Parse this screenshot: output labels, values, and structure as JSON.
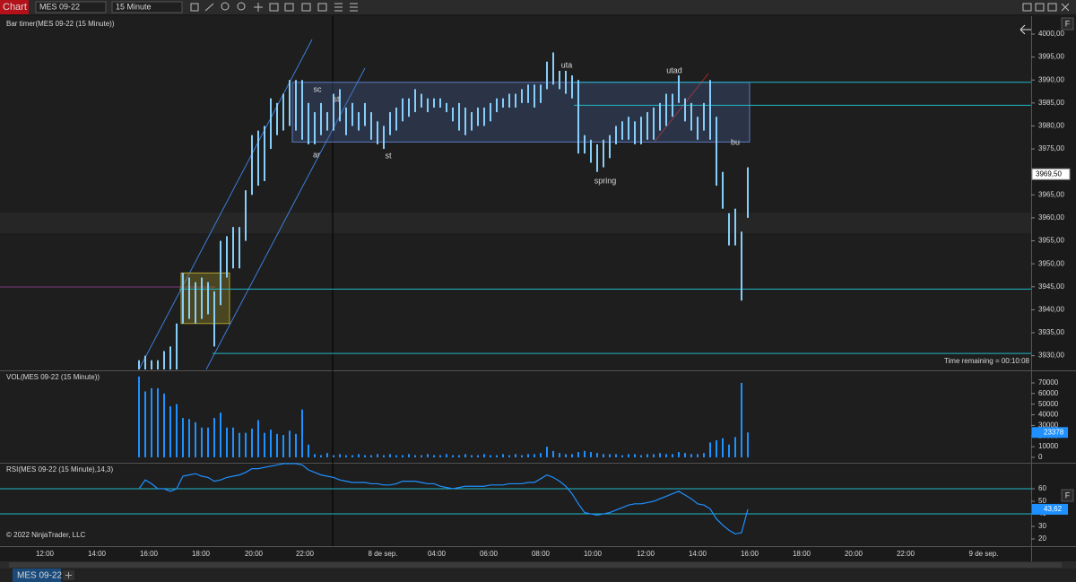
{
  "toolbar": {
    "app": "Chart",
    "instrument": "MES 09-22",
    "interval": "15 Minute"
  },
  "chart_data": [
    {
      "type": "hilo",
      "title": "Bar timer(MES 09-22 (15 Minute))",
      "color": "#87cefa",
      "high": [
        3929,
        3930,
        3929,
        3929,
        3931,
        3932,
        3937,
        3948,
        3947,
        3946,
        3947,
        3946,
        3944,
        3955,
        3956,
        3958,
        3958,
        3966,
        3978,
        3979,
        3980,
        3986,
        3985,
        3987,
        3990,
        3990,
        3990,
        3985,
        3983,
        3985,
        3983,
        3987,
        3988,
        3984,
        3985,
        3983,
        3985,
        3983,
        3981,
        3980,
        3983,
        3984,
        3986,
        3986,
        3988,
        3987,
        3986,
        3986,
        3986,
        3985,
        3984,
        3985,
        3984,
        3983,
        3984,
        3984,
        3985,
        3986,
        3986,
        3987,
        3987,
        3988,
        3989,
        3989,
        3989,
        3994,
        3996,
        3992,
        3992,
        3991,
        3990,
        3978,
        3977,
        3976,
        3977,
        3978,
        3980,
        3981,
        3982,
        3981,
        3982,
        3983,
        3984,
        3985,
        3987,
        3987,
        3991,
        3986,
        3985,
        3982,
        3985,
        3990,
        3982,
        3970,
        3961,
        3962,
        3957,
        3971
      ],
      "low": [
        3927,
        3927,
        3927,
        3927,
        3927,
        3927,
        3927,
        3937,
        3938,
        3937,
        3938,
        3939,
        3932,
        3941,
        3947,
        3949,
        3949,
        3955,
        3965,
        3967,
        3968,
        3975,
        3978,
        3979,
        3980,
        3979,
        3977,
        3976,
        3976,
        3978,
        3979,
        3979,
        3981,
        3978,
        3980,
        3979,
        3980,
        3977,
        3976,
        3975,
        3978,
        3979,
        3981,
        3982,
        3983,
        3984,
        3983,
        3984,
        3984,
        3983,
        3981,
        3979,
        3978,
        3979,
        3980,
        3980,
        3981,
        3983,
        3984,
        3984,
        3984,
        3985,
        3985,
        3984,
        3985,
        3988,
        3989,
        3988,
        3987,
        3986,
        3974,
        3974,
        3972,
        3970,
        3971,
        3973,
        3976,
        3977,
        3977,
        3976,
        3976,
        3977,
        3977,
        3979,
        3980,
        3982,
        3985,
        3981,
        3979,
        3977,
        3979,
        3977,
        3967,
        3962,
        3954,
        3954,
        3942,
        3960
      ],
      "ylim": [
        3927,
        4003.9
      ],
      "yticks": [
        {
          "value": 4000,
          "label": "4000,00"
        },
        {
          "value": 3995,
          "label": "3995,00"
        },
        {
          "value": 3990,
          "label": "3990,00"
        },
        {
          "value": 3985,
          "label": "3985,00"
        },
        {
          "value": 3980,
          "label": "3980,00"
        },
        {
          "value": 3975,
          "label": "3975,00"
        },
        {
          "value": 3970,
          "label": "3970,00"
        },
        {
          "value": 3965,
          "label": "3965,00"
        },
        {
          "value": 3960,
          "label": "3960,00"
        },
        {
          "value": 3955,
          "label": "3955,00"
        },
        {
          "value": 3950,
          "label": "3950,00"
        },
        {
          "value": 3945,
          "label": "3945,00"
        },
        {
          "value": 3940,
          "label": "3940,00"
        },
        {
          "value": 3935,
          "label": "3935,00"
        },
        {
          "value": 3930,
          "label": "3930,00"
        }
      ],
      "hlines": [
        3989.5,
        3984.5,
        3944.5,
        3930.5
      ],
      "zones": [
        {
          "low": 3976.5,
          "high": 3989.5
        },
        {
          "low": 3937,
          "high": 3948
        }
      ],
      "last_price": {
        "value": 3969.5,
        "label": "3969,50"
      },
      "annotations": [
        "sc",
        "st",
        "ar",
        "st",
        "uta",
        "utad",
        "spring",
        "bu"
      ],
      "time_remaining": "Time remaining = 00:10:08"
    },
    {
      "type": "volume",
      "title": "VOL(MES 09-22 (15 Minute))",
      "color": "#1e90ff",
      "values": [
        76000,
        62000,
        65000,
        65000,
        60000,
        48000,
        50000,
        37000,
        36000,
        33000,
        28000,
        28000,
        37000,
        42000,
        28000,
        28000,
        23000,
        23000,
        27000,
        35000,
        23000,
        26000,
        22000,
        21000,
        25000,
        22000,
        45000,
        12000,
        3000,
        2000,
        4000,
        2000,
        3000,
        2000,
        2000,
        3000,
        2000,
        2000,
        3000,
        2000,
        3000,
        2000,
        2000,
        3000,
        2000,
        2000,
        3000,
        2000,
        2000,
        3000,
        2000,
        2000,
        3000,
        2000,
        2000,
        3000,
        2000,
        2000,
        3000,
        2000,
        3000,
        2000,
        3000,
        3000,
        4000,
        10000,
        6000,
        4000,
        3000,
        3000,
        5000,
        6000,
        5000,
        4000,
        3000,
        3000,
        3000,
        2000,
        3000,
        3000,
        2000,
        3000,
        3000,
        4000,
        3000,
        3000,
        5000,
        4000,
        3000,
        3000,
        4000,
        14000,
        16000,
        18000,
        12000,
        19000,
        70000,
        23378
      ],
      "ylim": [
        -3400,
        80100
      ],
      "yticks": [
        0,
        10000,
        20000,
        30000,
        40000,
        50000,
        60000,
        70000
      ]
    },
    {
      "type": "line",
      "title": "RSI(MES 09-22 (15 Minute),14,3)",
      "color": "#1e90ff",
      "values": [
        60,
        67,
        64,
        60,
        60,
        58,
        60,
        70,
        71,
        72,
        70,
        69,
        66,
        67,
        69,
        70,
        71,
        73,
        76,
        76,
        77,
        78,
        79,
        80,
        80,
        80,
        79,
        75,
        73,
        71,
        70,
        69,
        67,
        66,
        65,
        65,
        65,
        64,
        64,
        63,
        63,
        64,
        66,
        66,
        66,
        65,
        64,
        64,
        62,
        61,
        60,
        61,
        62,
        62,
        62,
        62,
        63,
        63,
        63,
        64,
        64,
        64,
        65,
        65,
        68,
        71,
        69,
        66,
        62,
        56,
        48,
        41,
        40,
        39,
        40,
        41,
        43,
        45,
        47,
        48,
        48,
        49,
        50,
        52,
        54,
        56,
        58,
        55,
        52,
        48,
        47,
        44,
        36,
        31,
        27,
        24,
        25,
        43.62
      ],
      "bands": [
        60,
        40
      ],
      "ylim": [
        15,
        79.3
      ],
      "yticks": [
        20,
        30,
        40,
        50,
        60
      ],
      "last_value": {
        "value": 43.62,
        "label": "43,62"
      }
    }
  ],
  "time_axis": {
    "labels": [
      "12:00",
      "14:00",
      "16:00",
      "18:00",
      "20:00",
      "22:00",
      "8 de sep.",
      "04:00",
      "06:00",
      "08:00",
      "10:00",
      "12:00",
      "14:00",
      "16:00",
      "18:00",
      "20:00",
      "22:00",
      "9 de sep."
    ]
  },
  "footer": {
    "copyright": "© 2022 NinjaTrader, LLC",
    "tab": "MES 09-22",
    "panel_button": "F"
  }
}
